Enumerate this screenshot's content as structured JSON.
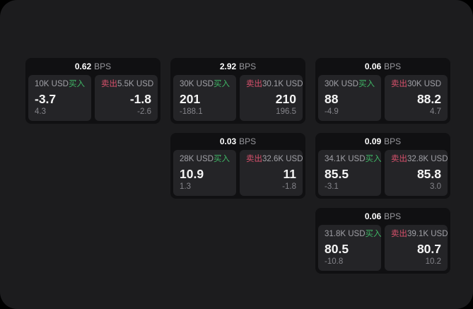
{
  "colors": {
    "background": "#000000",
    "panel_bg": "#1c1c1e",
    "card_bg": "#101012",
    "subpanel_bg": "#242427",
    "buy_green": "#3fb665",
    "sell_red": "#d8516c",
    "primary_text": "#f5f5f5",
    "muted_text": "#a0a0a6",
    "faint_text": "#84848a"
  },
  "labels": {
    "bps": "BPS",
    "buy": "买入",
    "sell": "卖出"
  },
  "cards": [
    {
      "row": 1,
      "col": 1,
      "bps": "0.62",
      "buy": {
        "notional": "10K USD",
        "price": "-3.7",
        "delta": "4.3"
      },
      "sell": {
        "notional": "5.5K USD",
        "price": "-1.8",
        "delta": "-2.6"
      }
    },
    {
      "row": 1,
      "col": 2,
      "bps": "2.92",
      "buy": {
        "notional": "30K USD",
        "price": "201",
        "delta": "-188.1"
      },
      "sell": {
        "notional": "30.1K USD",
        "price": "210",
        "delta": "196.5"
      }
    },
    {
      "row": 1,
      "col": 3,
      "bps": "0.06",
      "buy": {
        "notional": "30K USD",
        "price": "88",
        "delta": "-4.9"
      },
      "sell": {
        "notional": "30K USD",
        "price": "88.2",
        "delta": "4.7"
      }
    },
    {
      "row": 2,
      "col": 2,
      "bps": "0.03",
      "buy": {
        "notional": "28K USD",
        "price": "10.9",
        "delta": "1.3"
      },
      "sell": {
        "notional": "32.6K USD",
        "price": "11",
        "delta": "-1.8"
      }
    },
    {
      "row": 2,
      "col": 3,
      "bps": "0.09",
      "buy": {
        "notional": "34.1K USD",
        "price": "85.5",
        "delta": "-3.1"
      },
      "sell": {
        "notional": "32.8K USD",
        "price": "85.8",
        "delta": "3.0"
      }
    },
    {
      "row": 3,
      "col": 3,
      "bps": "0.06",
      "buy": {
        "notional": "31.8K USD",
        "price": "80.5",
        "delta": "-10.8"
      },
      "sell": {
        "notional": "39.1K USD",
        "price": "80.7",
        "delta": "10.2"
      }
    }
  ]
}
